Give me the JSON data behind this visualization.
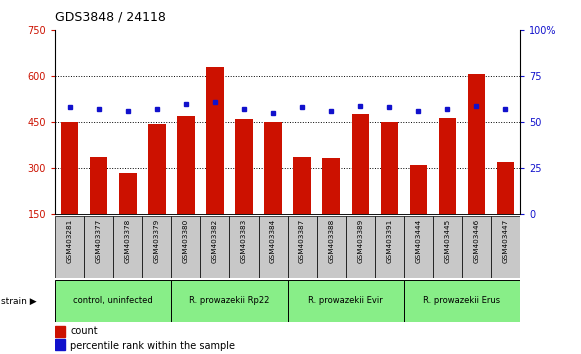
{
  "title": "GDS3848 / 24118",
  "samples": [
    "GSM403281",
    "GSM403377",
    "GSM403378",
    "GSM403379",
    "GSM403380",
    "GSM403382",
    "GSM403383",
    "GSM403384",
    "GSM403387",
    "GSM403388",
    "GSM403389",
    "GSM403391",
    "GSM403444",
    "GSM403445",
    "GSM403446",
    "GSM403447"
  ],
  "counts": [
    450,
    335,
    285,
    445,
    470,
    630,
    460,
    450,
    337,
    332,
    475,
    450,
    310,
    462,
    607,
    320
  ],
  "percentiles": [
    58,
    57,
    56,
    57,
    60,
    61,
    57,
    55,
    58,
    56,
    59,
    58,
    56,
    57,
    59,
    57
  ],
  "bar_color": "#CC1100",
  "dot_color": "#1111CC",
  "ylim_left": [
    150,
    750
  ],
  "ylim_right": [
    0,
    100
  ],
  "yticks_left": [
    150,
    300,
    450,
    600,
    750
  ],
  "yticks_right": [
    0,
    25,
    50,
    75,
    100
  ],
  "ytick_right_labels": [
    "0",
    "25",
    "50",
    "75",
    "100%"
  ],
  "groups": [
    {
      "label": "control, uninfected",
      "start": 0,
      "end": 4,
      "color": "#88EE88"
    },
    {
      "label": "R. prowazekii Rp22",
      "start": 4,
      "end": 8,
      "color": "#88EE88"
    },
    {
      "label": "R. prowazekii Evir",
      "start": 8,
      "end": 12,
      "color": "#88EE88"
    },
    {
      "label": "R. prowazekii Erus",
      "start": 12,
      "end": 16,
      "color": "#88EE88"
    }
  ],
  "legend_count_label": "count",
  "legend_pct_label": "percentile rank within the sample",
  "strain_label": "strain",
  "axis_label_color_left": "#CC1100",
  "axis_label_color_right": "#1111CC",
  "tick_area_color": "#C8C8C8"
}
